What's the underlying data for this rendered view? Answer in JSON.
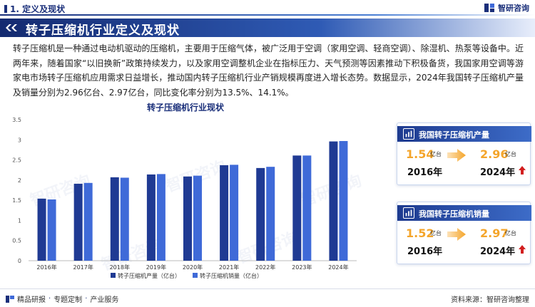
{
  "header": {
    "section_label": "1. 定义及现状",
    "brand_name": "智研咨询"
  },
  "title_band": {
    "title": "转子压缩机行业定义及现状"
  },
  "paragraph": "转子压缩机是一种通过电动机驱动的压缩机，主要用于压缩气体，被广泛用于空调（家用空调、轻商空调）、除湿机、热泵等设备中。近两年来，随着国家“以旧换新”政策持续发力，以及家用空调整机企业在指标压力、天气预测等因素推动下积极备货，我国家用空调等游家电市场转子压缩机应用需求日益增长，推动国内转子压缩机行业产销规模再度进入增长态势。数据显示，2024年我国转子压缩机产量及销量分别为2.96亿台、2.97亿台，同比变化率分别为13.5%、14.1%。",
  "watermark": "智研咨询",
  "cards": [
    {
      "title": "我国转子压缩机产量",
      "from_value": "1.54",
      "from_unit": "亿台",
      "from_year": "2016年",
      "to_value": "2.96",
      "to_unit": "亿台",
      "to_year": "2024年"
    },
    {
      "title": "我国转子压缩机销量",
      "from_value": "1.52",
      "from_unit": "亿台",
      "from_year": "2016年",
      "to_value": "2.97",
      "to_unit": "亿台",
      "to_year": "2024年"
    }
  ],
  "footer": {
    "left_items": [
      "精品研报",
      "专题定制",
      "产业服务"
    ],
    "source": "资料来源：智研咨询整理"
  },
  "colors": {
    "primary": "#1a2f7a",
    "series_production": "#1f3a93",
    "series_sales": "#3f6ad8",
    "accent_orange": "#f4a52b",
    "up_arrow": "#d21f1f"
  },
  "chart_data": {
    "type": "bar",
    "title": "转子压缩机行业现状",
    "categories": [
      "2016年",
      "2017年",
      "2018年",
      "2019年",
      "2020年",
      "2021年",
      "2022年",
      "2023年",
      "2024年"
    ],
    "series": [
      {
        "name": "转子压缩机产量（亿台）",
        "values": [
          1.54,
          1.91,
          2.07,
          2.14,
          2.09,
          2.37,
          2.3,
          2.61,
          2.96
        ]
      },
      {
        "name": "转子压缩机销量（亿台）",
        "values": [
          1.52,
          1.93,
          2.06,
          2.15,
          2.11,
          2.38,
          2.33,
          2.61,
          2.97
        ]
      }
    ],
    "yticks": [
      "0",
      "0.5",
      "1",
      "1.5",
      "2",
      "2.5",
      "3",
      "3.5"
    ],
    "ylim": [
      0,
      3.5
    ],
    "grid": false,
    "legend": "bottom"
  }
}
